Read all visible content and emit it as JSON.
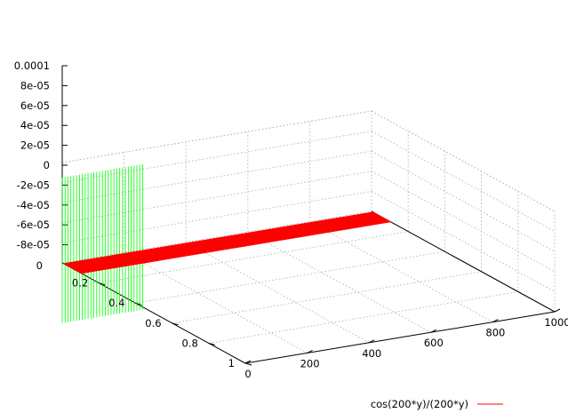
{
  "chart_data": {
    "type": "surface",
    "title": "",
    "function": "cos(200*y)/(200*y)",
    "series": [
      {
        "name": "cos(200*y)/(200*y)",
        "color": "#ff0000"
      }
    ],
    "back_face_color": "#00ff00",
    "x_axis": {
      "range": [
        0,
        1000
      ],
      "ticks": [
        0,
        200,
        400,
        600,
        800,
        1000
      ],
      "tick_labels": [
        "0",
        "200",
        "400",
        "600",
        "800",
        "1000"
      ]
    },
    "y_axis": {
      "range": [
        0,
        1
      ],
      "ticks": [
        0.2,
        0.4,
        0.6,
        0.8,
        1
      ],
      "tick_labels": [
        "0.2",
        "0.4",
        "0.6",
        "0.8",
        "1"
      ]
    },
    "z_axis": {
      "range": [
        -0.0001,
        0.0001
      ],
      "ticks": [
        0.0001,
        8e-05,
        6e-05,
        4e-05,
        2e-05,
        0,
        -2e-05,
        -4e-05,
        -6e-05,
        -8e-05
      ],
      "tick_labels": [
        "0.0001",
        "8e-05",
        "6e-05",
        "4e-05",
        "2e-05",
        "0",
        "-2e-05",
        "-4e-05",
        "-6e-05",
        "-8e-05"
      ]
    },
    "floor_label": "0",
    "grid": true,
    "legend_position": "bottom-right"
  }
}
